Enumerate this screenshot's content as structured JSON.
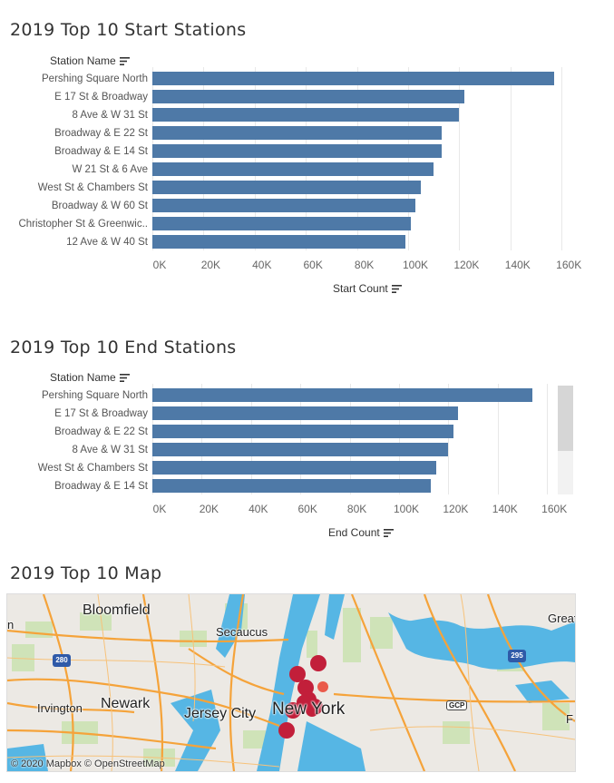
{
  "start": {
    "title": "2019 Top 10 Start Stations",
    "col_header": "Station Name",
    "axis_label": "Start Count",
    "ticks": [
      "0K",
      "20K",
      "40K",
      "60K",
      "80K",
      "100K",
      "120K",
      "140K",
      "160K"
    ]
  },
  "end": {
    "title": "2019 Top 10 End Stations",
    "col_header": "Station Name",
    "axis_label": "End Count",
    "ticks": [
      "0K",
      "20K",
      "40K",
      "60K",
      "80K",
      "100K",
      "120K",
      "140K",
      "160K"
    ]
  },
  "map": {
    "title": "2019 Top 10 Map",
    "labels": {
      "bloomfield": "Bloomfield",
      "secaucus": "Secaucus",
      "irvington": "Irvington",
      "newark": "Newark",
      "jersey_city": "Jersey City",
      "new_york": "New York",
      "great": "Great",
      "n_edge": "n",
      "f_edge": "F",
      "gcp": "GCP",
      "i280": "280",
      "i295": "295"
    },
    "attribution": "© 2020 Mapbox © OpenStreetMap"
  },
  "chart_data": [
    {
      "type": "bar",
      "orientation": "horizontal",
      "title": "2019 Top 10 Start Stations",
      "ylabel": "Station Name",
      "xlabel": "Start Count",
      "xlim": [
        0,
        160000
      ],
      "categories": [
        "Pershing Square North",
        "E 17 St & Broadway",
        "8 Ave & W 31 St",
        "Broadway & E 22 St",
        "Broadway & E 14 St",
        "W 21 St & 6 Ave",
        "West St & Chambers St",
        "Broadway & W 60 St",
        "Christopher St & Greenwic..",
        "12 Ave & W 40 St"
      ],
      "values": [
        157000,
        122000,
        120000,
        113000,
        113000,
        110000,
        105000,
        103000,
        101000,
        99000
      ]
    },
    {
      "type": "bar",
      "orientation": "horizontal",
      "title": "2019 Top 10 End Stations",
      "ylabel": "Station Name",
      "xlabel": "End Count",
      "xlim": [
        0,
        160000
      ],
      "categories": [
        "Pershing Square North",
        "E 17 St & Broadway",
        "Broadway & E 22 St",
        "8 Ave & W 31 St",
        "West St & Chambers St",
        "Broadway & E 14 St"
      ],
      "values": [
        154000,
        124000,
        122000,
        120000,
        115000,
        113000
      ]
    }
  ]
}
